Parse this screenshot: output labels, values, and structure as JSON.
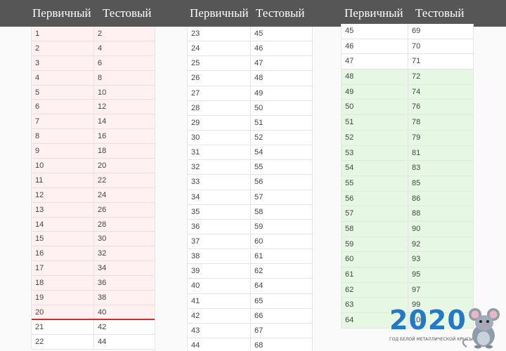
{
  "headers": [
    "Первичный",
    "Тестовый"
  ],
  "table1": [
    [
      "1",
      "2"
    ],
    [
      "2",
      "4"
    ],
    [
      "3",
      "6"
    ],
    [
      "4",
      "8"
    ],
    [
      "5",
      "10"
    ],
    [
      "6",
      "12"
    ],
    [
      "7",
      "14"
    ],
    [
      "8",
      "16"
    ],
    [
      "9",
      "18"
    ],
    [
      "10",
      "20"
    ],
    [
      "11",
      "22"
    ],
    [
      "12",
      "24"
    ],
    [
      "13",
      "26"
    ],
    [
      "14",
      "28"
    ],
    [
      "15",
      "30"
    ],
    [
      "16",
      "32"
    ],
    [
      "17",
      "34"
    ],
    [
      "18",
      "36"
    ],
    [
      "19",
      "38"
    ],
    [
      "20",
      "40"
    ],
    [
      "21",
      "42"
    ],
    [
      "22",
      "44"
    ]
  ],
  "table2": [
    [
      "23",
      "45"
    ],
    [
      "24",
      "46"
    ],
    [
      "25",
      "47"
    ],
    [
      "26",
      "48"
    ],
    [
      "27",
      "49"
    ],
    [
      "28",
      "50"
    ],
    [
      "29",
      "51"
    ],
    [
      "30",
      "52"
    ],
    [
      "31",
      "54"
    ],
    [
      "32",
      "55"
    ],
    [
      "33",
      "56"
    ],
    [
      "34",
      "57"
    ],
    [
      "35",
      "58"
    ],
    [
      "36",
      "59"
    ],
    [
      "37",
      "60"
    ],
    [
      "38",
      "61"
    ],
    [
      "39",
      "62"
    ],
    [
      "40",
      "64"
    ],
    [
      "41",
      "65"
    ],
    [
      "42",
      "66"
    ],
    [
      "43",
      "67"
    ],
    [
      "44",
      "68"
    ]
  ],
  "table3": [
    [
      "45",
      "69"
    ],
    [
      "46",
      "70"
    ],
    [
      "47",
      "71"
    ],
    [
      "48",
      "72"
    ],
    [
      "49",
      "74"
    ],
    [
      "50",
      "76"
    ],
    [
      "51",
      "78"
    ],
    [
      "52",
      "79"
    ],
    [
      "53",
      "81"
    ],
    [
      "54",
      "83"
    ],
    [
      "55",
      "85"
    ],
    [
      "56",
      "86"
    ],
    [
      "57",
      "88"
    ],
    [
      "58",
      "90"
    ],
    [
      "59",
      "92"
    ],
    [
      "60",
      "93"
    ],
    [
      "61",
      "95"
    ],
    [
      "62",
      "97"
    ],
    [
      "63",
      "99"
    ],
    [
      "64",
      "100"
    ]
  ],
  "highlight_colors": {
    "pink": "#fff1f1",
    "green": "#e6f8e4",
    "threshold_line": "#d62b2b"
  },
  "logo": {
    "year": "2020",
    "subtitle": "ГОД БЕЛОЙ МЕТАЛЛИЧЕСКОЙ КРЫСЫ",
    "icon": "mouse-icon"
  }
}
